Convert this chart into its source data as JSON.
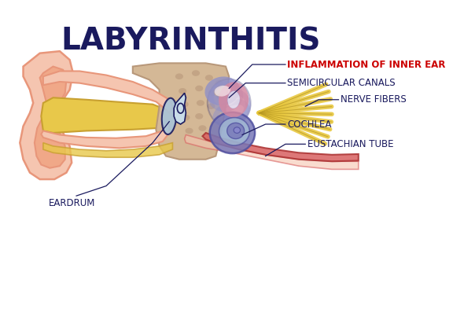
{
  "title": "LABYRINTHITIS",
  "title_fontsize": 28,
  "title_color": "#1a1a5e",
  "title_fontweight": "bold",
  "background_color": "#ffffff",
  "labels": {
    "inflammation": "INFLAMMATION OF INNER EAR",
    "semicircular": "SEMICIRCULAR CANALS",
    "nerve": "NERVE FIBERS",
    "cochlea": "COCHLEA",
    "eustachian": "EUSTACHIAN TUBE",
    "eardrum": "EARDRUM"
  },
  "label_color": "#1a1a5e",
  "inflammation_color": "#cc0000",
  "label_fontsize": 8.5,
  "colors": {
    "outer_ear_skin": "#f5c5b0",
    "outer_ear_dark": "#e8967a",
    "canal_yellow": "#e8c84a",
    "canal_outline": "#c8a030",
    "bone_beige": "#d4b896",
    "bone_spots": "#b8987a",
    "eardrum_blue": "#a8c4d8",
    "eardrum_outline": "#1a1a5e",
    "ossicles_light": "#c8dce8",
    "semicircular_purple": "#9090c8",
    "semicircular_pink": "#d888a0",
    "semicircular_outline": "#1a1a5e",
    "cochlea_purple": "#7878b8",
    "cochlea_dark": "#5050a0",
    "nerve_yellow": "#e8c840",
    "nerve_outline": "#b89820",
    "eustachian_red": "#d86060",
    "line_color": "#1a1a5e",
    "inner_skin": "#f0a888"
  }
}
